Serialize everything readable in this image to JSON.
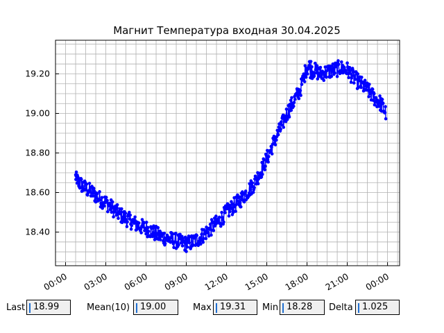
{
  "chart_data": {
    "type": "scatter",
    "title": "Магнит Температура входная 30.04.2025",
    "xlabel": "",
    "ylabel": "",
    "x_unit": "hours",
    "xlim": [
      -0.75,
      24.9
    ],
    "ylim": [
      18.23,
      19.37
    ],
    "x_ticks": [
      {
        "value": 0,
        "label": "00:00"
      },
      {
        "value": 3,
        "label": "03:00"
      },
      {
        "value": 6,
        "label": "06:00"
      },
      {
        "value": 9,
        "label": "09:00"
      },
      {
        "value": 12,
        "label": "12:00"
      },
      {
        "value": 15,
        "label": "15:00"
      },
      {
        "value": 18,
        "label": "18:00"
      },
      {
        "value": 21,
        "label": "21:00"
      },
      {
        "value": 24,
        "label": "00:00"
      }
    ],
    "y_ticks": [
      {
        "value": 18.4,
        "label": "18.40"
      },
      {
        "value": 18.6,
        "label": "18.60"
      },
      {
        "value": 18.8,
        "label": "18.80"
      },
      {
        "value": 19.0,
        "label": "19.00"
      },
      {
        "value": 19.2,
        "label": "19.20"
      }
    ],
    "grid": true,
    "minor_grid": true,
    "series": [
      {
        "color": "#0000ff",
        "x": [
          0.75,
          1.0,
          1.5,
          2.0,
          2.5,
          3.0,
          3.5,
          4.0,
          4.5,
          5.0,
          5.5,
          6.0,
          6.5,
          7.0,
          7.5,
          8.0,
          8.5,
          9.0,
          9.5,
          10.0,
          10.5,
          11.0,
          11.5,
          12.0,
          12.5,
          13.0,
          13.5,
          14.0,
          14.5,
          15.0,
          15.5,
          16.0,
          16.5,
          17.0,
          17.5,
          18.0,
          18.5,
          19.0,
          19.5,
          20.0,
          20.5,
          21.0,
          21.5,
          22.0,
          22.5,
          23.0,
          23.5,
          23.9
        ],
        "y": [
          18.68,
          18.65,
          18.62,
          18.6,
          18.57,
          18.55,
          18.52,
          18.49,
          18.47,
          18.45,
          18.43,
          18.42,
          18.4,
          18.38,
          18.37,
          18.36,
          18.35,
          18.34,
          18.35,
          18.37,
          18.4,
          18.43,
          18.46,
          18.5,
          18.53,
          18.56,
          18.6,
          18.64,
          18.7,
          18.77,
          18.85,
          18.92,
          19.0,
          19.06,
          19.12,
          19.24,
          19.22,
          19.2,
          19.21,
          19.22,
          19.23,
          19.22,
          19.18,
          19.15,
          19.12,
          19.08,
          19.05,
          19.0
        ],
        "spread": [
          0.03,
          0.04,
          0.04,
          0.04,
          0.04,
          0.04,
          0.04,
          0.04,
          0.04,
          0.04,
          0.04,
          0.04,
          0.04,
          0.04,
          0.04,
          0.04,
          0.04,
          0.04,
          0.04,
          0.04,
          0.04,
          0.04,
          0.04,
          0.04,
          0.04,
          0.04,
          0.04,
          0.04,
          0.04,
          0.04,
          0.04,
          0.04,
          0.04,
          0.04,
          0.04,
          0.05,
          0.04,
          0.04,
          0.04,
          0.04,
          0.04,
          0.04,
          0.04,
          0.04,
          0.04,
          0.04,
          0.04,
          0.04
        ]
      }
    ]
  },
  "stats": {
    "last_label": "Last",
    "last_value": "18.99",
    "mean_label": "Mean(10)",
    "mean_value": "19.00",
    "max_label": "Max",
    "max_value": "19.31",
    "min_label": "Min",
    "min_value": "18.28",
    "delta_label": "Delta",
    "delta_value": "1.025"
  }
}
